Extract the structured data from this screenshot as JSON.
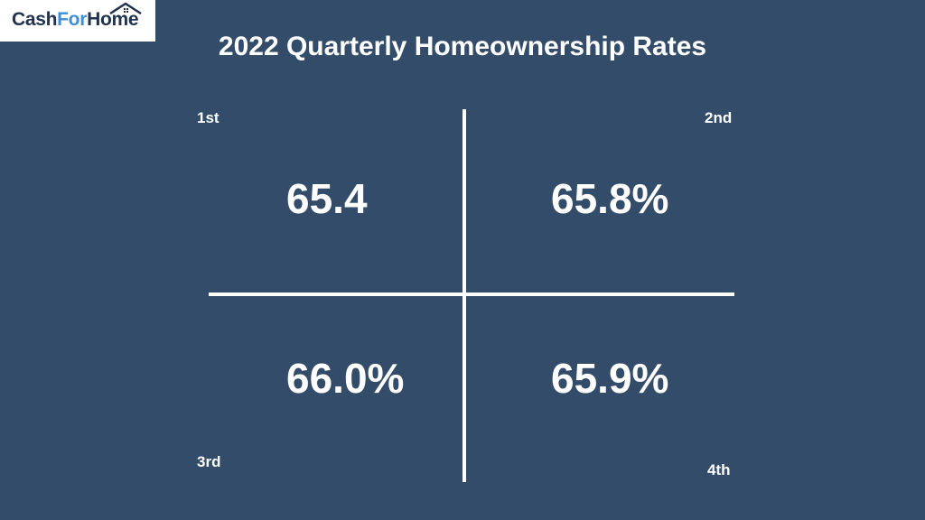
{
  "logo": {
    "part1": "Cash",
    "part2": "For",
    "part3": "Home"
  },
  "title": "2022 Quarterly Homeownership Rates",
  "quarters": [
    {
      "label": "1st",
      "value": "65.4"
    },
    {
      "label": "2nd",
      "value": "65.8%"
    },
    {
      "label": "3rd",
      "value": "66.0%"
    },
    {
      "label": "4th",
      "value": "65.9%"
    }
  ],
  "colors": {
    "background": "#334c6a",
    "logo_dark": "#22334f",
    "logo_accent": "#3d8fd6",
    "text": "#ffffff"
  }
}
